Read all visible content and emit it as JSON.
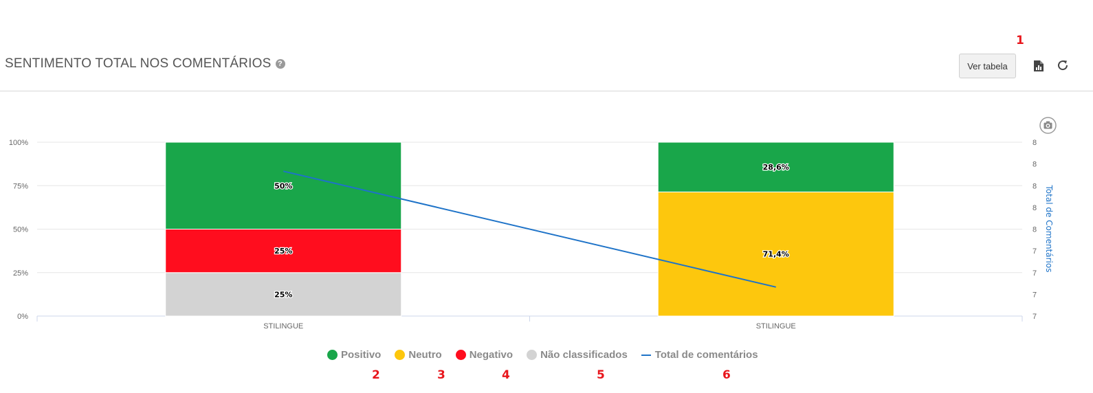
{
  "header": {
    "title": "SENTIMENTO TOTAL NOS COMENTÁRIOS",
    "help_icon": "?",
    "ver_tabela_label": "Ver tabela"
  },
  "icons": {
    "help": "question-circle-icon",
    "export": "file-chart-icon",
    "refresh": "refresh-icon",
    "camera": "camera-icon"
  },
  "annotations": [
    "1",
    "2",
    "3",
    "4",
    "5",
    "6"
  ],
  "colors": {
    "positivo": "#19a64a",
    "neutro": "#fdc70d",
    "negativo": "#ff0d1e",
    "nao_classificados": "#d3d3d3",
    "total": "#1e73c8",
    "annotation": "#e8161c"
  },
  "chart_data": {
    "type": "bar",
    "stacked": true,
    "percent_stacked": true,
    "categories": [
      "STILINGUE",
      "STILINGUE"
    ],
    "y_ticks": [
      "0%",
      "25%",
      "50%",
      "75%",
      "100%"
    ],
    "y2_label": "Total de Comentários",
    "y2_ticks": [
      "7",
      "7",
      "7",
      "7",
      "8",
      "8",
      "8",
      "8",
      "8"
    ],
    "series": [
      {
        "name": "Positivo",
        "values": [
          50,
          28.6
        ],
        "labels": [
          "50%",
          "28,6%"
        ]
      },
      {
        "name": "Neutro",
        "values": [
          0,
          71.4
        ],
        "labels": [
          "",
          "71,4%"
        ]
      },
      {
        "name": "Negativo",
        "values": [
          25,
          0
        ],
        "labels": [
          "25%",
          ""
        ]
      },
      {
        "name": "Não classificados",
        "values": [
          25,
          0
        ],
        "labels": [
          "25%",
          ""
        ]
      }
    ],
    "line_series": {
      "name": "Total de comentários",
      "values": [
        8,
        7
      ]
    },
    "ylim": [
      0,
      100
    ],
    "grid": true,
    "legend": "bottom-center"
  }
}
